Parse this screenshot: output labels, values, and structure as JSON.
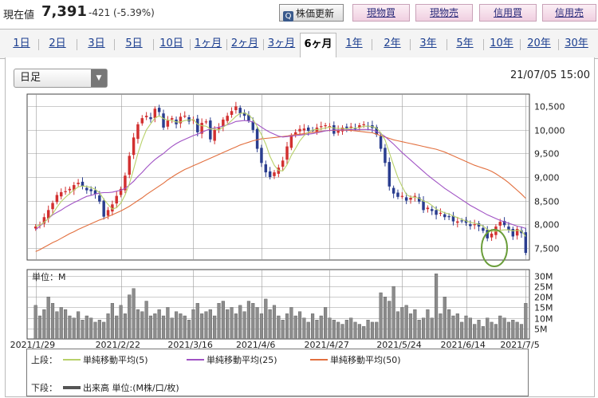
{
  "header": {
    "price_label": "現在値",
    "price_value": "7,391",
    "price_change": "-421 (-5.39%)",
    "refresh_label": "株価更新",
    "refresh_icon": "q-icon",
    "trade_buttons": [
      "現物買",
      "現物売",
      "信用買",
      "信用売"
    ]
  },
  "periods": {
    "tabs": [
      "1日",
      "2日",
      "3日",
      "5日",
      "10日",
      "1ヶ月",
      "2ヶ月",
      "3ヶ月",
      "6ヶ月",
      "1年",
      "2年",
      "3年",
      "5年",
      "10年",
      "20年",
      "30年"
    ],
    "active": "6ヶ月"
  },
  "controls": {
    "interval_select": "日足",
    "datetime": "21/07/05 15:00"
  },
  "legend": {
    "upper_label": "上段：",
    "lower_label": "下段：",
    "ma5": "単純移動平均(5)",
    "ma25": "単純移動平均(25)",
    "ma50": "単純移動平均(50)",
    "volume": "出来高 単位:(M株/口/枚)",
    "colors": {
      "ma5": "#b8d16a",
      "ma25": "#a052c4",
      "ma50": "#e26f3e",
      "volume": "#555555",
      "up": "#d23030",
      "down": "#2a3d8f"
    }
  },
  "chart_data": [
    {
      "type": "candlestick",
      "title": "",
      "y_ticks": [
        7500,
        8000,
        8500,
        9000,
        9500,
        10000,
        10500
      ],
      "y_tick_labels": [
        "7,500",
        "8,000",
        "8,500",
        "9,000",
        "9,500",
        "10,000",
        "10,500"
      ],
      "ylim": [
        7240,
        10760
      ],
      "x_tick_labels": [
        "2021/1/29",
        "2021/2/22",
        "2021/3/16",
        "2021/4/6",
        "2021/4/27",
        "2021/5/24",
        "2021/6/14",
        "2021/7/5"
      ],
      "grid": true,
      "close": [
        7950,
        7990,
        8150,
        8300,
        8450,
        8620,
        8680,
        8700,
        8750,
        8830,
        8880,
        8800,
        8720,
        8700,
        8640,
        8480,
        8160,
        8300,
        8420,
        8600,
        8750,
        9030,
        9450,
        9840,
        10120,
        10250,
        10300,
        10230,
        10450,
        10380,
        10050,
        10200,
        10250,
        10120,
        10280,
        10300,
        10180,
        10220,
        9950,
        10150,
        10180,
        9800,
        10000,
        10050,
        10220,
        10300,
        10400,
        10500,
        10350,
        10300,
        10200,
        10000,
        9600,
        9300,
        9100,
        9000,
        9100,
        9200,
        9350,
        9650,
        9880,
        9950,
        10020,
        10030,
        9980,
        9990,
        10050,
        10080,
        10100,
        10080,
        9920,
        10000,
        10050,
        10040,
        10070,
        10030,
        10100,
        10120,
        10080,
        10040,
        9900,
        9600,
        9300,
        8800,
        8650,
        8580,
        8600,
        8500,
        8560,
        8600,
        8480,
        8300,
        8350,
        8280,
        8200,
        8240,
        8150,
        8160,
        8060,
        8060,
        8070,
        8030,
        7960,
        8000,
        7950,
        7860,
        7700,
        7800,
        7950,
        8050,
        7980,
        7880,
        7740,
        7900,
        7810,
        7391
      ],
      "ma5": [
        7960,
        7980,
        8040,
        8120,
        8220,
        8360,
        8480,
        8570,
        8650,
        8730,
        8790,
        8810,
        8800,
        8780,
        8740,
        8670,
        8530,
        8420,
        8320,
        8350,
        8450,
        8620,
        8860,
        9170,
        9500,
        9780,
        10000,
        10130,
        10250,
        10300,
        10240,
        10210,
        10200,
        10170,
        10170,
        10200,
        10210,
        10220,
        10120,
        10090,
        10080,
        10020,
        10020,
        10000,
        10060,
        10120,
        10200,
        10290,
        10350,
        10360,
        10320,
        10230,
        10070,
        9900,
        9700,
        9440,
        9250,
        9140,
        9130,
        9260,
        9460,
        9610,
        9770,
        9880,
        9950,
        10000,
        10010,
        10020,
        10040,
        10060,
        10040,
        10030,
        10030,
        10020,
        10040,
        10040,
        10050,
        10080,
        10080,
        10070,
        10040,
        9940,
        9790,
        9520,
        9250,
        8990,
        8800,
        8630,
        8580,
        8570,
        8550,
        8490,
        8460,
        8400,
        8320,
        8280,
        8240,
        8220,
        8170,
        8140,
        8100,
        8070,
        8040,
        8020,
        8000,
        7960,
        7890,
        7850,
        7850,
        7870,
        7880,
        7880,
        7860,
        7870,
        7860,
        7740
      ],
      "ma25": [
        7880,
        7960,
        8040,
        8120,
        8200,
        8250,
        8300,
        8360,
        8410,
        8460,
        8500,
        8550,
        8590,
        8610,
        8640,
        8660,
        8670,
        8670,
        8680,
        8700,
        8720,
        8760,
        8830,
        8910,
        9010,
        9100,
        9200,
        9290,
        9370,
        9440,
        9500,
        9580,
        9650,
        9710,
        9760,
        9800,
        9840,
        9880,
        9910,
        9950,
        9990,
        10020,
        10040,
        10060,
        10080,
        10110,
        10140,
        10180,
        10190,
        10200,
        10190,
        10170,
        10120,
        10060,
        10000,
        9950,
        9910,
        9870,
        9850,
        9860,
        9870,
        9880,
        9890,
        9900,
        9910,
        9920,
        9940,
        9960,
        9980,
        9990,
        10000,
        10000,
        10000,
        10000,
        10010,
        10000,
        10010,
        10010,
        10010,
        10000,
        9970,
        9920,
        9860,
        9780,
        9700,
        9610,
        9520,
        9440,
        9360,
        9280,
        9200,
        9120,
        9040,
        8970,
        8900,
        8830,
        8760,
        8700,
        8640,
        8580,
        8520,
        8460,
        8400,
        8350,
        8300,
        8250,
        8200,
        8160,
        8120,
        8080,
        8050,
        8020,
        7990,
        7960,
        7940,
        7910
      ],
      "ma50": [
        7420,
        7460,
        7510,
        7560,
        7610,
        7650,
        7700,
        7750,
        7800,
        7840,
        7890,
        7930,
        7970,
        8010,
        8050,
        8090,
        8120,
        8160,
        8200,
        8240,
        8280,
        8330,
        8380,
        8440,
        8500,
        8560,
        8630,
        8690,
        8750,
        8810,
        8870,
        8940,
        9000,
        9060,
        9110,
        9160,
        9200,
        9240,
        9280,
        9320,
        9360,
        9400,
        9440,
        9480,
        9520,
        9560,
        9600,
        9640,
        9680,
        9710,
        9740,
        9770,
        9790,
        9810,
        9820,
        9830,
        9840,
        9850,
        9860,
        9870,
        9890,
        9900,
        9910,
        9920,
        9940,
        9950,
        9960,
        9970,
        9980,
        9990,
        9990,
        9990,
        9990,
        9990,
        9990,
        9980,
        9970,
        9960,
        9950,
        9940,
        9910,
        9880,
        9850,
        9820,
        9790,
        9770,
        9750,
        9730,
        9710,
        9690,
        9670,
        9650,
        9630,
        9610,
        9590,
        9560,
        9530,
        9490,
        9450,
        9410,
        9370,
        9330,
        9290,
        9250,
        9220,
        9190,
        9160,
        9120,
        9070,
        9010,
        8950,
        8880,
        8800,
        8720,
        8640,
        8550
      ]
    },
    {
      "type": "bar",
      "title": "",
      "unit_label": "単位：M",
      "y_ticks": [
        5,
        10,
        15,
        20,
        25,
        30
      ],
      "y_tick_labels": [
        "5M",
        "10M",
        "15M",
        "20M",
        "25M",
        "30M"
      ],
      "ylim": [
        0,
        33
      ],
      "x_tick_labels": [
        "2021/1/29",
        "2021/2/22",
        "2021/3/16",
        "2021/4/6",
        "2021/4/27",
        "2021/5/24",
        "2021/6/14",
        "2021/7/5"
      ],
      "volume": [
        16,
        11,
        14,
        20,
        17,
        13,
        15,
        14,
        11,
        10,
        13,
        9,
        11,
        10,
        8,
        9,
        8,
        12,
        17,
        11,
        16,
        12,
        21,
        24,
        14,
        13,
        18,
        11,
        12,
        14,
        11,
        15,
        10,
        13,
        12,
        11,
        9,
        14,
        17,
        12,
        13,
        14,
        11,
        17,
        18,
        14,
        15,
        12,
        16,
        13,
        18,
        17,
        15,
        12,
        19,
        14,
        16,
        11,
        9,
        12,
        15,
        11,
        13,
        10,
        8,
        12,
        9,
        11,
        15,
        10,
        9,
        8,
        7,
        9,
        10,
        8,
        7,
        6,
        9,
        8,
        8,
        22,
        20,
        18,
        25,
        13,
        15,
        16,
        12,
        14,
        9,
        10,
        14,
        10,
        31,
        12,
        20,
        14,
        11,
        12,
        8,
        11,
        10,
        7,
        9,
        6,
        10,
        8,
        7,
        11,
        10,
        8,
        9,
        8,
        7,
        17
      ]
    }
  ]
}
